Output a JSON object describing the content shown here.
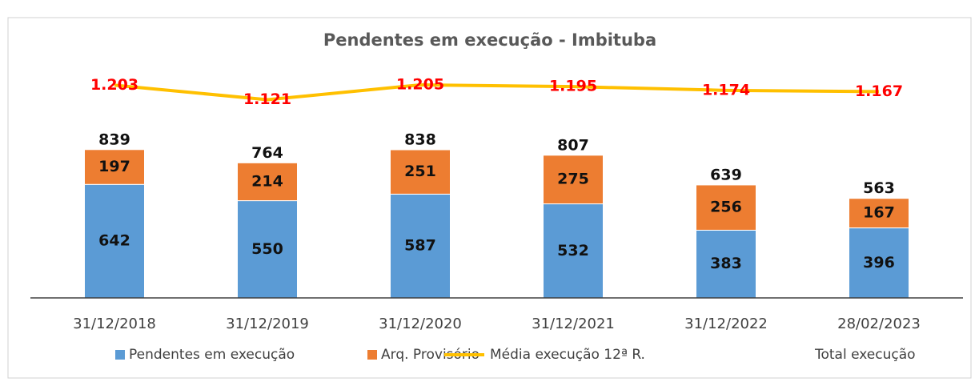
{
  "chart_data": {
    "type": "stacked-bar-line",
    "title": "Pendentes em execução - Imbituba",
    "categories": [
      "31/12/2018",
      "31/12/2019",
      "31/12/2020",
      "31/12/2021",
      "31/12/2022",
      "28/02/2023"
    ],
    "series": [
      {
        "name": "Pendentes em execução",
        "type": "bar",
        "color": "#5b9bd5",
        "values": [
          642,
          550,
          587,
          532,
          383,
          396
        ]
      },
      {
        "name": "Arq. Provisório",
        "type": "bar",
        "color": "#ed7d31",
        "values": [
          197,
          214,
          251,
          275,
          256,
          167
        ]
      },
      {
        "name": "Média execução 12ª R.",
        "type": "line",
        "color": "#ffc000",
        "values": [
          1203,
          1121,
          1205,
          1195,
          1174,
          1167
        ],
        "value_labels": [
          "1.203",
          "1.121",
          "1.205",
          "1.195",
          "1.174",
          "1.167"
        ]
      },
      {
        "name": "Total execução",
        "type": "labels",
        "values": [
          839,
          764,
          838,
          807,
          639,
          563
        ]
      }
    ],
    "ylim": [
      0,
      1300
    ]
  }
}
